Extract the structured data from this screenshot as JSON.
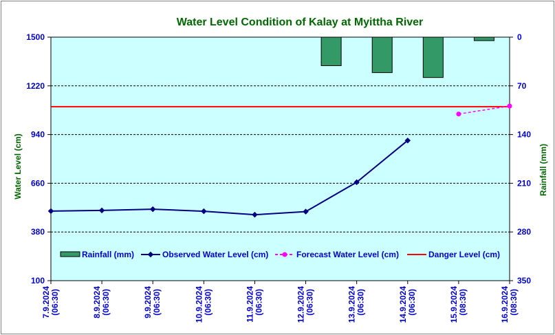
{
  "chart_data": {
    "type": "line",
    "title": "Water Level Condition of Kalay at Myittha River",
    "ylabel_left": "Water Level (cm)",
    "ylabel_right": "Rainfall (mm)",
    "x_categories": [
      "7.9.2024",
      "8.9.2024",
      "9.9.2024",
      "10.9.2024",
      "11.9.2024",
      "12.9.2024",
      "13.9.2024",
      "14.9.2024",
      "15.9.2024",
      "16.9.2024"
    ],
    "x_times": [
      "(06:30)",
      "(06:30)",
      "(06:30)",
      "(06:30)",
      "(06:30)",
      "(06:30)",
      "(06:30)",
      "(06:30)",
      "(08:30)",
      "(08:30)"
    ],
    "ylim_left": [
      100,
      1500
    ],
    "yticks_left": [
      100,
      380,
      660,
      940,
      1220,
      1500
    ],
    "ylim_right": [
      0,
      350
    ],
    "yticks_right": [
      0,
      70,
      140,
      210,
      280,
      350
    ],
    "right_axis_inverted": true,
    "grid": "horizontal dashed",
    "legend_position": "lower-center inside plot",
    "series": [
      {
        "name": "Rainfall (mm)",
        "type": "bar",
        "axis": "right",
        "color": "#339966",
        "values": [
          0,
          0,
          0,
          0,
          0,
          41,
          51,
          58,
          5,
          0
        ]
      },
      {
        "name": "Observed Water Level (cm)",
        "type": "line",
        "axis": "left",
        "color": "#000080",
        "values": [
          500,
          504,
          511,
          499,
          479,
          497,
          666,
          906,
          null,
          null
        ]
      },
      {
        "name": "Forecast Water Level (cm)",
        "type": "line-dashed",
        "axis": "left",
        "color": "#ff00ff",
        "values": [
          null,
          null,
          null,
          null,
          null,
          null,
          null,
          null,
          1058,
          1104
        ]
      },
      {
        "name": "Danger Level (cm)",
        "type": "hline",
        "axis": "left",
        "color": "#ff0000",
        "value": 1100
      }
    ],
    "colors": {
      "plot_background": "#ccffff",
      "title": "#006600",
      "tick_labels": "#0000cc",
      "axis_labels": "#006600"
    }
  }
}
